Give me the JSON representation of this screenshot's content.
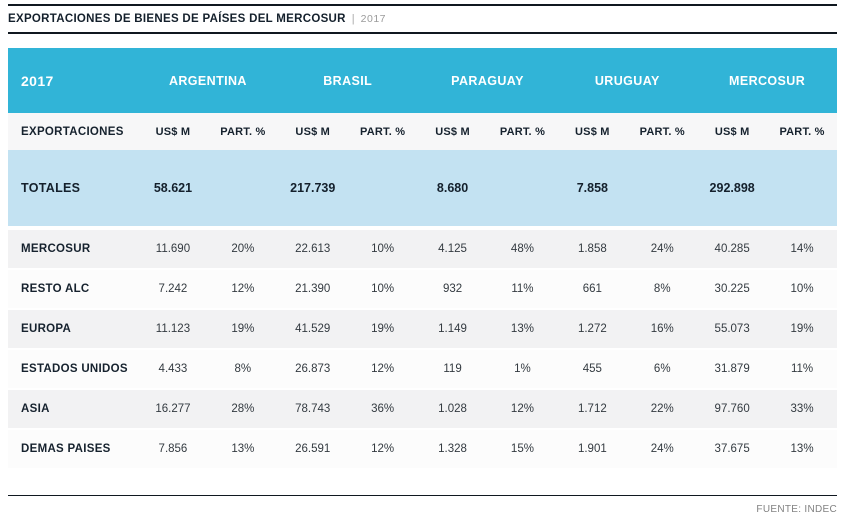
{
  "page": {
    "title": "EXPORTACIONES DE BIENES DE PAÍSES DEL MERCOSUR",
    "title_separator": "|",
    "title_year": "2017",
    "source": "FUENTE: INDEC"
  },
  "chart_data": {
    "type": "table",
    "title": "EXPORTACIONES DE BIENES DE PAÍSES DEL MERCOSUR | 2017",
    "corner_label": "2017",
    "row_header_label": "EXPORTACIONES",
    "column_groups": [
      "ARGENTINA",
      "BRASIL",
      "PARAGUAY",
      "URUGUAY",
      "MERCOSUR"
    ],
    "sub_headers": [
      "US$ M",
      "PART. %"
    ],
    "totals_row": {
      "label": "TOTALES",
      "values": [
        "58.621",
        "217.739",
        "8.680",
        "7.858",
        "292.898"
      ]
    },
    "rows": [
      {
        "label": "MERCOSUR",
        "cells": [
          "11.690",
          "20%",
          "22.613",
          "10%",
          "4.125",
          "48%",
          "1.858",
          "24%",
          "40.285",
          "14%"
        ]
      },
      {
        "label": "RESTO ALC",
        "cells": [
          "7.242",
          "12%",
          "21.390",
          "10%",
          "932",
          "11%",
          "661",
          "8%",
          "30.225",
          "10%"
        ]
      },
      {
        "label": "EUROPA",
        "cells": [
          "11.123",
          "19%",
          "41.529",
          "19%",
          "1.149",
          "13%",
          "1.272",
          "16%",
          "55.073",
          "19%"
        ]
      },
      {
        "label": "ESTADOS UNIDOS",
        "cells": [
          "4.433",
          "8%",
          "26.873",
          "12%",
          "119",
          "1%",
          "455",
          "6%",
          "31.879",
          "11%"
        ]
      },
      {
        "label": "ASIA",
        "cells": [
          "16.277",
          "28%",
          "78.743",
          "36%",
          "1.028",
          "12%",
          "1.712",
          "22%",
          "97.760",
          "33%"
        ]
      },
      {
        "label": "DEMAS PAISES",
        "cells": [
          "7.856",
          "13%",
          "26.591",
          "12%",
          "1.328",
          "15%",
          "1.901",
          "24%",
          "37.675",
          "13%"
        ]
      }
    ]
  },
  "colors": {
    "header_cyan": "#31b4d7",
    "totals_blue": "#c3e2f2",
    "row_alt_gray": "#f2f2f3",
    "rule_dark": "#101820",
    "source_gray": "#828282"
  }
}
